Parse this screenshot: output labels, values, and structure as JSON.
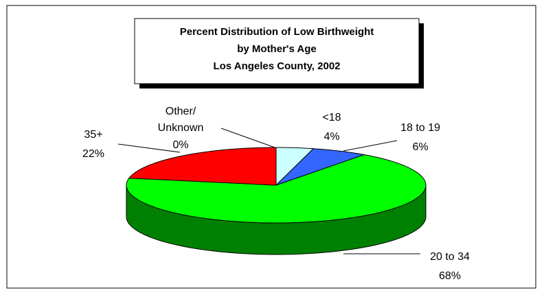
{
  "chart_data": {
    "type": "pie3d",
    "title": [
      "Percent Distribution of Low Birthweight",
      "by Mother's Age",
      "Los Angeles County, 2002"
    ],
    "categories": [
      [
        "<18"
      ],
      [
        "18 to 19"
      ],
      [
        "20 to 34"
      ],
      [
        "35+"
      ],
      [
        "Other/",
        "Unknown"
      ]
    ],
    "values": [
      4,
      6,
      68,
      22,
      0
    ],
    "value_labels": [
      "4%",
      "6%",
      "68%",
      "22%",
      "0%"
    ],
    "colors": [
      "#ccffff",
      "#3366ff",
      "#00ff00",
      "#ff0000",
      "#ffff99"
    ],
    "side_colors": [
      "#669999",
      "#1a3380",
      "#008000",
      "#800000",
      "#808040"
    ]
  }
}
